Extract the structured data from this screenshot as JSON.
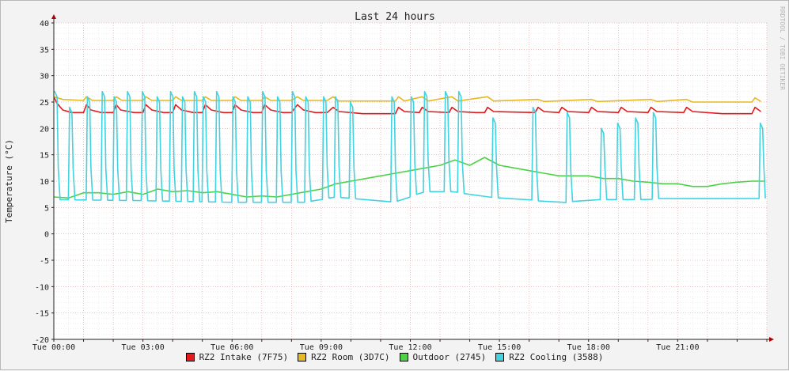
{
  "chart_data": {
    "type": "line",
    "title": "Last 24 hours",
    "ylabel": "Temperature (°C)",
    "watermark": "RRDTOOL / TOBI OETIKER",
    "ylim": [
      -20,
      40
    ],
    "y_ticks": [
      {
        "value": 40,
        "label": "40"
      },
      {
        "value": 35,
        "label": "35"
      },
      {
        "value": 30,
        "label": "30"
      },
      {
        "value": 25,
        "label": "25"
      },
      {
        "value": 20,
        "label": "20"
      },
      {
        "value": 15,
        "label": "15"
      },
      {
        "value": 10,
        "label": "10"
      },
      {
        "value": 5,
        "label": "5"
      },
      {
        "value": 0,
        "label": "0"
      },
      {
        "value": -5,
        "label": "-5"
      },
      {
        "value": -10,
        "label": "-10"
      },
      {
        "value": -15,
        "label": "-15"
      },
      {
        "value": -20,
        "label": "-20"
      }
    ],
    "xlim_hours": [
      0,
      24
    ],
    "x_ticks": [
      {
        "hour": 0,
        "label": "Tue 00:00"
      },
      {
        "hour": 3,
        "label": "Tue 03:00"
      },
      {
        "hour": 6,
        "label": "Tue 06:00"
      },
      {
        "hour": 9,
        "label": "Tue 09:00"
      },
      {
        "hour": 12,
        "label": "Tue 12:00"
      },
      {
        "hour": 15,
        "label": "Tue 15:00"
      },
      {
        "hour": 18,
        "label": "Tue 18:00"
      },
      {
        "hour": 21,
        "label": "Tue 21:00"
      }
    ],
    "grid": true,
    "legend_position": "bottom",
    "series": [
      {
        "name": "RZ2 Intake (7F75)",
        "color": "#e41a1c",
        "points": [
          [
            0,
            26
          ],
          [
            0.1,
            24.8
          ],
          [
            0.3,
            23.5
          ],
          [
            0.6,
            23.0
          ],
          [
            1.0,
            23.0
          ],
          [
            1.1,
            24.5
          ],
          [
            1.25,
            23.5
          ],
          [
            1.6,
            23.0
          ],
          [
            2.0,
            23.0
          ],
          [
            2.1,
            24.5
          ],
          [
            2.25,
            23.5
          ],
          [
            2.7,
            23.0
          ],
          [
            3.0,
            23.0
          ],
          [
            3.1,
            24.5
          ],
          [
            3.3,
            23.5
          ],
          [
            3.7,
            23.0
          ],
          [
            4.0,
            23.0
          ],
          [
            4.1,
            24.5
          ],
          [
            4.3,
            23.5
          ],
          [
            4.7,
            23.0
          ],
          [
            5.0,
            23.0
          ],
          [
            5.1,
            24.5
          ],
          [
            5.3,
            23.5
          ],
          [
            5.7,
            23.0
          ],
          [
            6.0,
            23.0
          ],
          [
            6.1,
            24.5
          ],
          [
            6.3,
            23.5
          ],
          [
            6.7,
            23.0
          ],
          [
            7.0,
            23.0
          ],
          [
            7.1,
            24.5
          ],
          [
            7.3,
            23.5
          ],
          [
            7.7,
            23.0
          ],
          [
            8.0,
            23.0
          ],
          [
            8.2,
            24.5
          ],
          [
            8.4,
            23.5
          ],
          [
            8.8,
            23.0
          ],
          [
            9.2,
            23.0
          ],
          [
            9.4,
            24.0
          ],
          [
            9.6,
            23.2
          ],
          [
            10.4,
            22.8
          ],
          [
            11.5,
            22.8
          ],
          [
            11.6,
            24.0
          ],
          [
            11.8,
            23.2
          ],
          [
            12.3,
            23.0
          ],
          [
            12.4,
            24.0
          ],
          [
            12.6,
            23.2
          ],
          [
            13.3,
            23.0
          ],
          [
            13.4,
            24.0
          ],
          [
            13.6,
            23.2
          ],
          [
            14.2,
            23.0
          ],
          [
            14.5,
            23.0
          ],
          [
            14.6,
            24.0
          ],
          [
            14.8,
            23.2
          ],
          [
            16.2,
            23.0
          ],
          [
            16.3,
            24.0
          ],
          [
            16.5,
            23.2
          ],
          [
            17.0,
            23.0
          ],
          [
            17.1,
            24.0
          ],
          [
            17.3,
            23.2
          ],
          [
            18.0,
            23.0
          ],
          [
            18.1,
            24.0
          ],
          [
            18.3,
            23.2
          ],
          [
            19.0,
            23.0
          ],
          [
            19.1,
            24.0
          ],
          [
            19.3,
            23.2
          ],
          [
            20.0,
            23.0
          ],
          [
            20.1,
            24.0
          ],
          [
            20.3,
            23.2
          ],
          [
            21.2,
            23.0
          ],
          [
            21.3,
            24.0
          ],
          [
            21.5,
            23.2
          ],
          [
            22.5,
            22.8
          ],
          [
            23.5,
            22.8
          ],
          [
            23.6,
            24.0
          ],
          [
            23.8,
            23.2
          ]
        ]
      },
      {
        "name": "RZ2 Room (3D7C)",
        "color": "#e6b822",
        "points": [
          [
            0,
            26
          ],
          [
            0.3,
            25.5
          ],
          [
            1.0,
            25.3
          ],
          [
            1.1,
            26.0
          ],
          [
            1.3,
            25.3
          ],
          [
            2.0,
            25.3
          ],
          [
            2.1,
            26.0
          ],
          [
            2.3,
            25.3
          ],
          [
            3.0,
            25.3
          ],
          [
            3.1,
            26.0
          ],
          [
            3.3,
            25.3
          ],
          [
            4.0,
            25.3
          ],
          [
            4.1,
            26.0
          ],
          [
            4.3,
            25.3
          ],
          [
            5.0,
            25.3
          ],
          [
            5.1,
            26.0
          ],
          [
            5.3,
            25.3
          ],
          [
            6.0,
            25.3
          ],
          [
            6.1,
            26.0
          ],
          [
            6.3,
            25.3
          ],
          [
            7.0,
            25.3
          ],
          [
            7.1,
            26.0
          ],
          [
            7.3,
            25.3
          ],
          [
            8.0,
            25.3
          ],
          [
            8.2,
            26.0
          ],
          [
            8.4,
            25.3
          ],
          [
            9.2,
            25.3
          ],
          [
            9.4,
            26.0
          ],
          [
            9.6,
            25.2
          ],
          [
            11.5,
            25.2
          ],
          [
            11.6,
            26.0
          ],
          [
            11.8,
            25.2
          ],
          [
            12.4,
            26.0
          ],
          [
            12.6,
            25.2
          ],
          [
            13.4,
            26.0
          ],
          [
            13.6,
            25.2
          ],
          [
            14.6,
            26.0
          ],
          [
            14.8,
            25.2
          ],
          [
            16.3,
            25.5
          ],
          [
            16.5,
            25.1
          ],
          [
            18.1,
            25.5
          ],
          [
            18.3,
            25.1
          ],
          [
            20.1,
            25.5
          ],
          [
            20.3,
            25.1
          ],
          [
            21.3,
            25.5
          ],
          [
            21.5,
            25.0
          ],
          [
            23.5,
            25.0
          ],
          [
            23.6,
            25.8
          ],
          [
            23.8,
            25.1
          ]
        ]
      },
      {
        "name": "Outdoor (2745)",
        "color": "#4dd247",
        "points": [
          [
            0,
            7
          ],
          [
            0.5,
            6.8
          ],
          [
            1.0,
            7.8
          ],
          [
            1.5,
            7.8
          ],
          [
            2.0,
            7.5
          ],
          [
            2.5,
            8.0
          ],
          [
            3.0,
            7.5
          ],
          [
            3.5,
            8.5
          ],
          [
            4.0,
            8.0
          ],
          [
            4.5,
            8.2
          ],
          [
            5.0,
            7.8
          ],
          [
            5.5,
            8.0
          ],
          [
            6.0,
            7.5
          ],
          [
            6.5,
            7.0
          ],
          [
            7.0,
            7.2
          ],
          [
            7.5,
            7.0
          ],
          [
            8.0,
            7.5
          ],
          [
            8.5,
            8.0
          ],
          [
            9.0,
            8.5
          ],
          [
            9.5,
            9.5
          ],
          [
            10.0,
            10.0
          ],
          [
            10.5,
            10.5
          ],
          [
            11.0,
            11.0
          ],
          [
            11.5,
            11.5
          ],
          [
            12.0,
            12.0
          ],
          [
            12.5,
            12.5
          ],
          [
            13.0,
            13.0
          ],
          [
            13.5,
            14.0
          ],
          [
            14.0,
            13.0
          ],
          [
            14.5,
            14.5
          ],
          [
            15.0,
            13.0
          ],
          [
            15.5,
            12.5
          ],
          [
            16.0,
            12.0
          ],
          [
            16.5,
            11.5
          ],
          [
            17.0,
            11.0
          ],
          [
            17.5,
            11.0
          ],
          [
            18.0,
            11.0
          ],
          [
            18.5,
            10.5
          ],
          [
            19.0,
            10.5
          ],
          [
            19.5,
            10.0
          ],
          [
            20.0,
            9.8
          ],
          [
            20.5,
            9.5
          ],
          [
            21.0,
            9.5
          ],
          [
            21.5,
            9.0
          ],
          [
            22.0,
            9.0
          ],
          [
            22.5,
            9.5
          ],
          [
            23.0,
            9.8
          ],
          [
            23.5,
            10.0
          ],
          [
            23.95,
            10.0
          ]
        ]
      },
      {
        "name": "RZ2 Cooling (3588)",
        "color": "#42d2e0",
        "peak_hours": [
          0.05,
          0.55,
          1.15,
          1.65,
          2.05,
          2.5,
          3.0,
          3.5,
          3.95,
          4.35,
          4.75,
          5.05,
          5.5,
          6.05,
          6.55,
          7.05,
          7.55,
          8.05,
          8.5,
          9.1,
          9.5,
          10.0,
          11.4,
          12.05,
          12.5,
          13.2,
          13.65,
          14.8,
          16.15,
          17.3,
          18.45,
          19.0,
          19.6,
          20.2,
          23.8
        ],
        "peak_values": [
          27,
          24,
          26,
          27,
          26,
          27,
          27,
          26,
          27,
          26,
          27,
          26,
          27,
          26,
          26,
          27,
          26,
          27,
          26,
          26,
          26,
          25,
          26,
          26,
          27,
          27,
          27,
          22,
          24,
          23,
          20,
          21,
          22,
          23,
          21
        ],
        "baseline_points": [
          [
            0,
            6.5
          ],
          [
            3.0,
            6.3
          ],
          [
            6.0,
            6.0
          ],
          [
            8.5,
            6.0
          ],
          [
            9.5,
            7.0
          ],
          [
            10.5,
            6.5
          ],
          [
            11.5,
            6.0
          ],
          [
            12.5,
            8.0
          ],
          [
            13.5,
            8.0
          ],
          [
            14.5,
            7.0
          ],
          [
            16.0,
            6.5
          ],
          [
            17.0,
            5.8
          ],
          [
            18.0,
            6.5
          ],
          [
            19.0,
            6.5
          ],
          [
            20.0,
            6.5
          ],
          [
            21.0,
            7.0
          ],
          [
            22.0,
            6.8
          ],
          [
            23.0,
            6.5
          ],
          [
            23.95,
            6.8
          ]
        ]
      }
    ]
  }
}
